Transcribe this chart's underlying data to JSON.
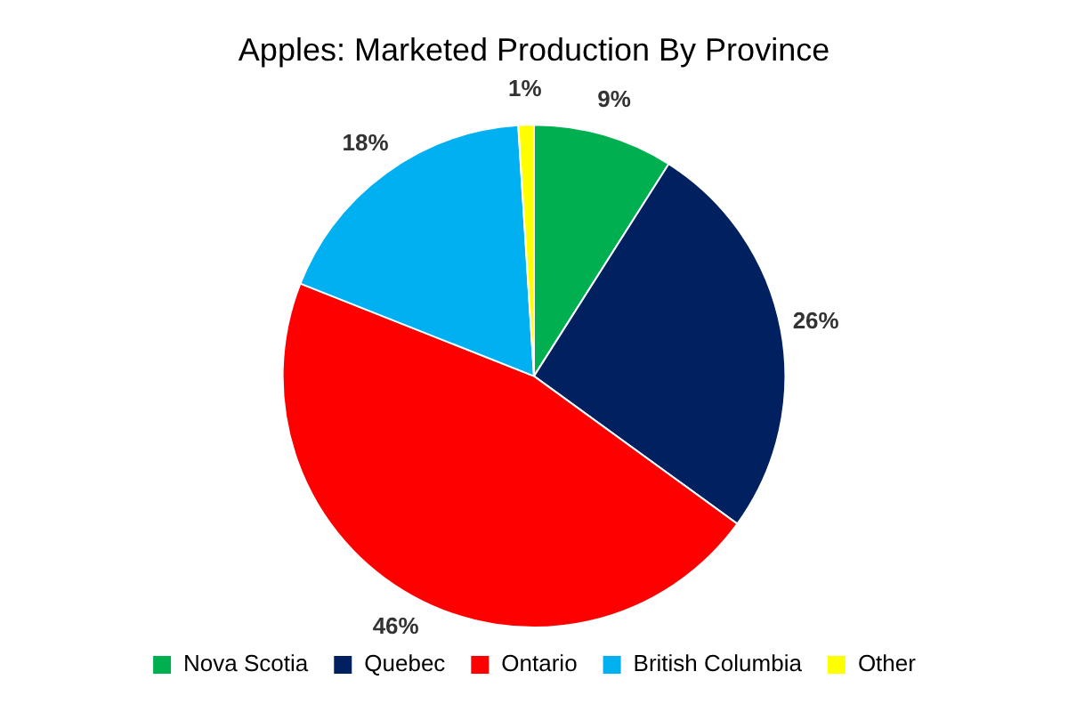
{
  "chart_data": {
    "type": "pie",
    "title": "Apples: Marketed Production By Province",
    "categories": [
      "Nova Scotia",
      "Quebec",
      "Ontario",
      "British Columbia",
      "Other"
    ],
    "values": [
      9,
      26,
      46,
      18,
      1
    ],
    "colors": [
      "#00b050",
      "#002060",
      "#ff0000",
      "#00b0f0",
      "#ffff00"
    ],
    "value_labels": [
      "9%",
      "26%",
      "46%",
      "18%",
      "1%"
    ],
    "legend": "bottom"
  }
}
